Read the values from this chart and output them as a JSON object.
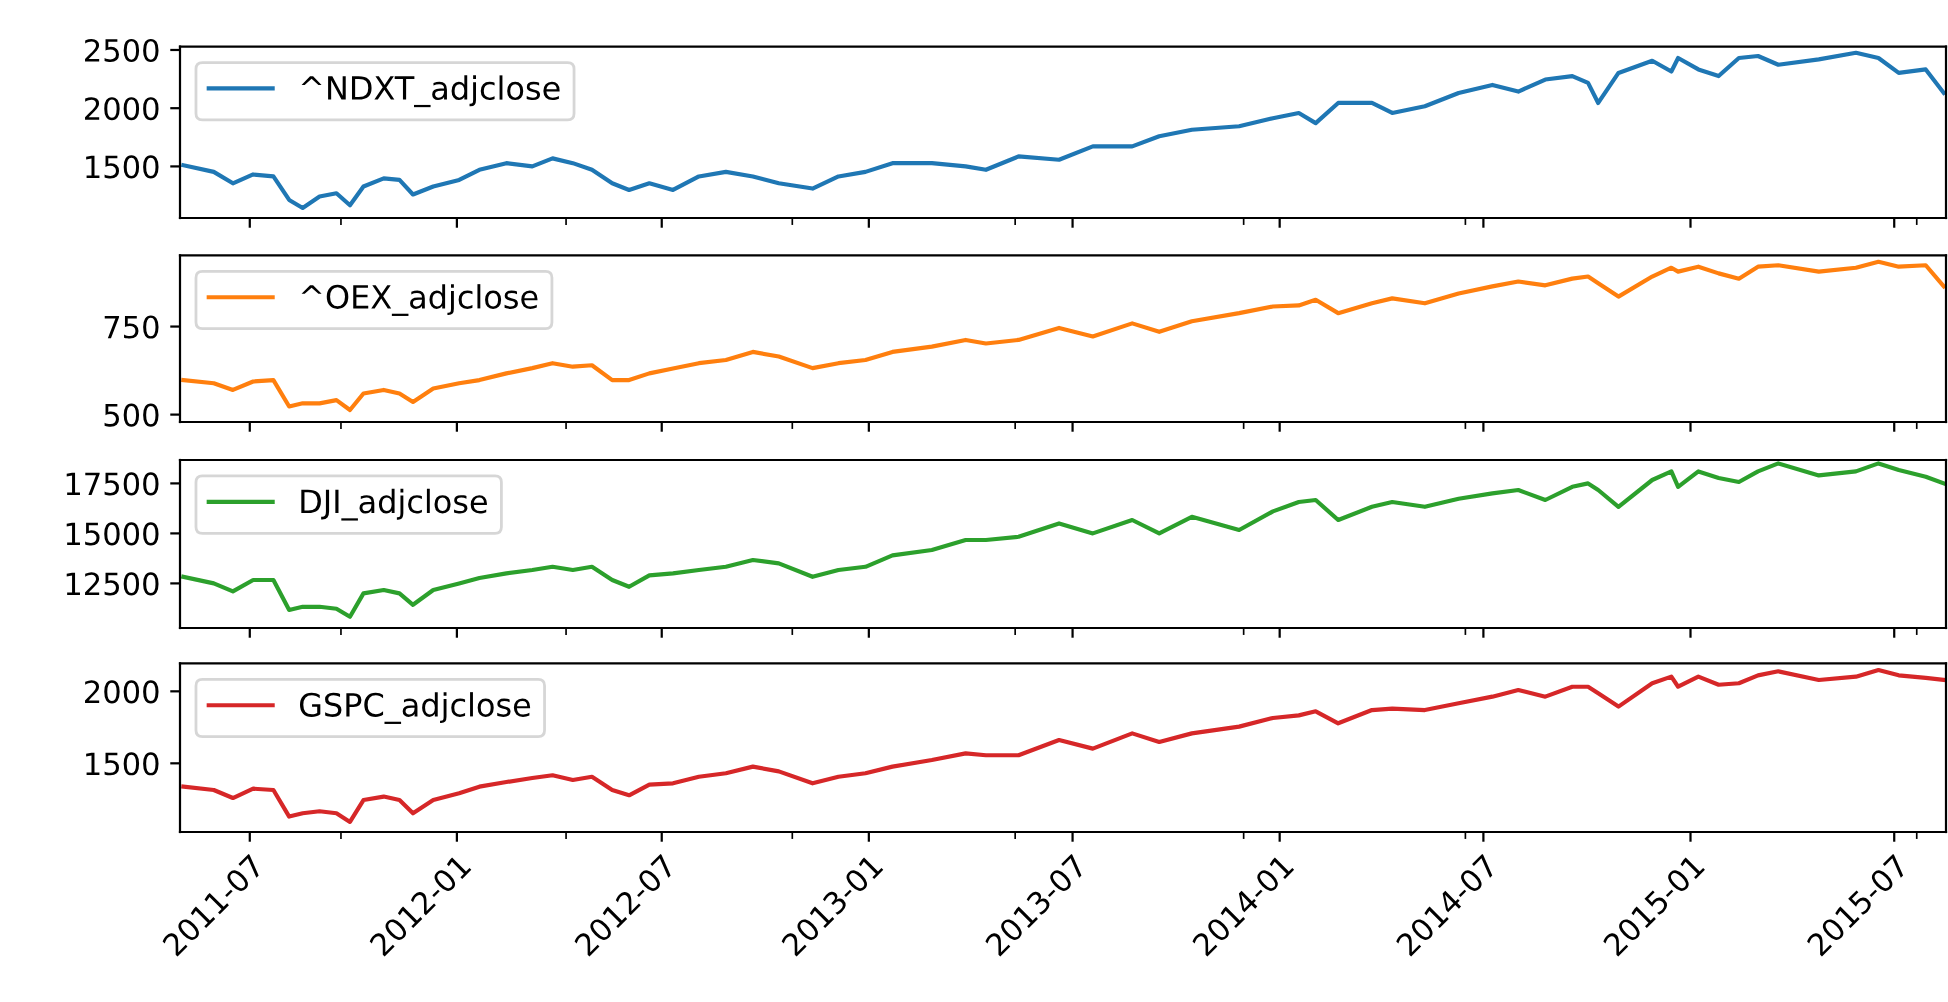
{
  "chart_data": [
    {
      "type": "line",
      "x": [
        "2011-05-03",
        "2011-05-30",
        "2011-06-16",
        "2011-07-04",
        "2011-07-22",
        "2011-08-05",
        "2011-08-17",
        "2011-09-01",
        "2011-09-16",
        "2011-09-28",
        "2011-10-10",
        "2011-10-28",
        "2011-11-11",
        "2011-11-23",
        "2011-12-11",
        "2012-01-03",
        "2012-01-21",
        "2012-02-14",
        "2012-03-08",
        "2012-03-26",
        "2012-04-13",
        "2012-04-30",
        "2012-05-18",
        "2012-06-02",
        "2012-06-20",
        "2012-07-11",
        "2012-08-03",
        "2012-08-27",
        "2012-09-20",
        "2012-10-13",
        "2012-11-12",
        "2012-12-05",
        "2012-12-29",
        "2013-01-22",
        "2013-02-26",
        "2013-03-28",
        "2013-04-15",
        "2013-05-14",
        "2013-06-19",
        "2013-07-19",
        "2013-08-23",
        "2013-09-16",
        "2013-10-15",
        "2013-11-26",
        "2013-12-26",
        "2014-01-18",
        "2014-02-02",
        "2014-02-22",
        "2014-03-24",
        "2014-04-11",
        "2014-05-10",
        "2014-06-09",
        "2014-07-09",
        "2014-08-01",
        "2014-08-25",
        "2014-09-18",
        "2014-10-02",
        "2014-10-11",
        "2014-10-29",
        "2014-11-28",
        "2014-12-15",
        "2014-12-21",
        "2015-01-08",
        "2015-01-26",
        "2015-02-13",
        "2015-03-02",
        "2015-03-20",
        "2015-04-25",
        "2015-05-28",
        "2015-06-17",
        "2015-07-05",
        "2015-07-29",
        "2015-08-14"
      ],
      "series": [
        {
          "name": "^NDXT_adjclose",
          "color": "#1f77b4",
          "values": [
            1510,
            1453,
            1355,
            1431,
            1414,
            1212,
            1143,
            1241,
            1269,
            1166,
            1328,
            1397,
            1384,
            1259,
            1328,
            1384,
            1471,
            1528,
            1500,
            1569,
            1528,
            1471,
            1355,
            1298,
            1355,
            1298,
            1414,
            1453,
            1414,
            1355,
            1310,
            1414,
            1453,
            1528,
            1528,
            1500,
            1471,
            1586,
            1557,
            1672,
            1672,
            1759,
            1815,
            1845,
            1914,
            1959,
            1872,
            2045,
            2045,
            1959,
            2017,
            2131,
            2200,
            2143,
            2246,
            2276,
            2217,
            2045,
            2303,
            2407,
            2315,
            2431,
            2333,
            2276,
            2431,
            2448,
            2373,
            2419,
            2476,
            2431,
            2303,
            2333,
            2131
          ]
        }
      ],
      "xlim": [
        "2011-04-30",
        "2015-08-16"
      ],
      "xticks": [
        "2011-07",
        {
          "value": "2011-09-20",
          "label": null
        },
        "2012-01",
        {
          "value": "2012-04-07",
          "label": null
        },
        "2012-07",
        {
          "value": "2012-10-25",
          "label": null
        },
        "2013-01",
        {
          "value": "2013-05-11",
          "label": null
        },
        "2013-07",
        {
          "value": "2013-11-30",
          "label": null
        },
        "2014-01",
        {
          "value": "2014-06-15",
          "label": null
        },
        "2014-07",
        "2015-01",
        "2015-07",
        {
          "value": "2015-07-21",
          "label": null
        }
      ],
      "ylim": [
        1057,
        2529
      ],
      "yticks": [
        1500,
        2000,
        2500
      ],
      "tick_labels": "y",
      "legend": "top left",
      "grid": false
    },
    {
      "type": "line",
      "x": [
        "2011-05-03",
        "2011-05-30",
        "2011-06-16",
        "2011-07-04",
        "2011-07-22",
        "2011-08-05",
        "2011-08-17",
        "2011-09-01",
        "2011-09-16",
        "2011-09-28",
        "2011-10-10",
        "2011-10-28",
        "2011-11-11",
        "2011-11-23",
        "2011-12-11",
        "2012-01-03",
        "2012-01-21",
        "2012-02-14",
        "2012-03-08",
        "2012-03-26",
        "2012-04-13",
        "2012-04-30",
        "2012-05-18",
        "2012-06-02",
        "2012-06-20",
        "2012-07-11",
        "2012-08-03",
        "2012-08-27",
        "2012-09-20",
        "2012-10-13",
        "2012-11-12",
        "2012-12-05",
        "2012-12-29",
        "2013-01-22",
        "2013-02-26",
        "2013-03-28",
        "2013-04-15",
        "2013-05-14",
        "2013-06-19",
        "2013-07-19",
        "2013-08-23",
        "2013-09-16",
        "2013-10-15",
        "2013-11-26",
        "2013-12-26",
        "2014-01-18",
        "2014-02-02",
        "2014-02-22",
        "2014-03-24",
        "2014-04-11",
        "2014-05-10",
        "2014-06-09",
        "2014-07-09",
        "2014-08-01",
        "2014-08-25",
        "2014-09-18",
        "2014-10-02",
        "2014-10-11",
        "2014-10-29",
        "2014-11-28",
        "2014-12-15",
        "2014-12-21",
        "2015-01-08",
        "2015-01-26",
        "2015-02-13",
        "2015-03-02",
        "2015-03-20",
        "2015-04-25",
        "2015-05-28",
        "2015-06-17",
        "2015-07-05",
        "2015-07-29",
        "2015-08-14"
      ],
      "series": [
        {
          "name": "^OEX_adjclose",
          "color": "#ff7f0e",
          "values": [
            598,
            589,
            570,
            594,
            598,
            523,
            532,
            532,
            541,
            513,
            560,
            570,
            560,
            536,
            574,
            589,
            598,
            617,
            632,
            646,
            636,
            640,
            598,
            598,
            617,
            631,
            646,
            655,
            678,
            665,
            632,
            646,
            655,
            678,
            693,
            712,
            702,
            712,
            746,
            722,
            759,
            735,
            765,
            788,
            807,
            810,
            826,
            788,
            816,
            830,
            816,
            844,
            864,
            878,
            867,
            886,
            892,
            873,
            835,
            892,
            917,
            906,
            920,
            901,
            886,
            920,
            924,
            906,
            917,
            934,
            920,
            924,
            864
          ]
        }
      ],
      "xlim": [
        "2011-04-30",
        "2015-08-16"
      ],
      "xticks": [
        "2011-07",
        {
          "value": "2011-09-20",
          "label": null
        },
        "2012-01",
        {
          "value": "2012-04-07",
          "label": null
        },
        "2012-07",
        {
          "value": "2012-10-25",
          "label": null
        },
        "2013-01",
        {
          "value": "2013-05-11",
          "label": null
        },
        "2013-07",
        {
          "value": "2013-11-30",
          "label": null
        },
        "2014-01",
        {
          "value": "2014-06-15",
          "label": null
        },
        "2014-07",
        "2015-01",
        "2015-07",
        {
          "value": "2015-07-21",
          "label": null
        }
      ],
      "ylim": [
        479,
        952
      ],
      "yticks": [
        500,
        750
      ],
      "tick_labels": "y",
      "legend": "top left",
      "grid": false
    },
    {
      "type": "line",
      "x": [
        "2011-05-03",
        "2011-05-30",
        "2011-06-16",
        "2011-07-04",
        "2011-07-22",
        "2011-08-05",
        "2011-08-17",
        "2011-09-01",
        "2011-09-16",
        "2011-09-28",
        "2011-10-10",
        "2011-10-28",
        "2011-11-11",
        "2011-11-23",
        "2011-12-11",
        "2012-01-03",
        "2012-01-21",
        "2012-02-14",
        "2012-03-08",
        "2012-03-26",
        "2012-04-13",
        "2012-04-30",
        "2012-05-18",
        "2012-06-02",
        "2012-06-20",
        "2012-07-11",
        "2012-08-03",
        "2012-08-27",
        "2012-09-20",
        "2012-10-13",
        "2012-11-12",
        "2012-12-05",
        "2012-12-29",
        "2013-01-22",
        "2013-02-26",
        "2013-03-28",
        "2013-04-15",
        "2013-05-14",
        "2013-06-19",
        "2013-07-19",
        "2013-08-23",
        "2013-09-16",
        "2013-10-15",
        "2013-11-26",
        "2013-12-26",
        "2014-01-18",
        "2014-02-02",
        "2014-02-22",
        "2014-03-24",
        "2014-04-11",
        "2014-05-10",
        "2014-06-09",
        "2014-07-09",
        "2014-08-01",
        "2014-08-25",
        "2014-09-18",
        "2014-10-02",
        "2014-10-11",
        "2014-10-29",
        "2014-11-28",
        "2014-12-15",
        "2014-12-21",
        "2015-01-08",
        "2015-01-26",
        "2015-02-13",
        "2015-03-02",
        "2015-03-20",
        "2015-04-25",
        "2015-05-28",
        "2015-06-17",
        "2015-07-05",
        "2015-07-29",
        "2015-08-14"
      ],
      "series": [
        {
          "name": "DJI_adjclose",
          "color": "#2ca02c",
          "values": [
            12830,
            12500,
            12100,
            12670,
            12670,
            11170,
            11330,
            11330,
            11230,
            10830,
            12000,
            12170,
            12000,
            11430,
            12170,
            12500,
            12770,
            13000,
            13170,
            13330,
            13170,
            13330,
            12670,
            12330,
            12900,
            13000,
            13170,
            13330,
            13670,
            13500,
            12830,
            13170,
            13330,
            13900,
            14170,
            14670,
            14670,
            14830,
            15500,
            15000,
            15670,
            15000,
            15830,
            15170,
            16100,
            16570,
            16670,
            15670,
            16330,
            16570,
            16330,
            16730,
            17000,
            17170,
            16670,
            17330,
            17500,
            17170,
            16330,
            17670,
            18100,
            17330,
            18100,
            17770,
            17570,
            18100,
            18500,
            17900,
            18100,
            18500,
            18170,
            17830,
            17500
          ]
        }
      ],
      "xlim": [
        "2011-04-30",
        "2015-08-16"
      ],
      "xticks": [
        "2011-07",
        {
          "value": "2011-09-20",
          "label": null
        },
        "2012-01",
        {
          "value": "2012-04-07",
          "label": null
        },
        "2012-07",
        {
          "value": "2012-10-25",
          "label": null
        },
        "2013-01",
        {
          "value": "2013-05-11",
          "label": null
        },
        "2013-07",
        {
          "value": "2013-11-30",
          "label": null
        },
        "2014-01",
        {
          "value": "2014-06-15",
          "label": null
        },
        "2014-07",
        "2015-01",
        "2015-07",
        {
          "value": "2015-07-21",
          "label": null
        }
      ],
      "ylim": [
        10270,
        18670
      ],
      "yticks": [
        12500,
        15000,
        17500
      ],
      "tick_labels": "y",
      "legend": "top left",
      "grid": false
    },
    {
      "type": "line",
      "x": [
        "2011-05-03",
        "2011-05-30",
        "2011-06-16",
        "2011-07-04",
        "2011-07-22",
        "2011-08-05",
        "2011-08-17",
        "2011-09-01",
        "2011-09-16",
        "2011-09-28",
        "2011-10-10",
        "2011-10-28",
        "2011-11-11",
        "2011-11-23",
        "2011-12-11",
        "2012-01-03",
        "2012-01-21",
        "2012-02-14",
        "2012-03-08",
        "2012-03-26",
        "2012-04-13",
        "2012-04-30",
        "2012-05-18",
        "2012-06-02",
        "2012-06-20",
        "2012-07-11",
        "2012-08-03",
        "2012-08-27",
        "2012-09-20",
        "2012-10-13",
        "2012-11-12",
        "2012-12-05",
        "2012-12-29",
        "2013-01-22",
        "2013-02-26",
        "2013-03-28",
        "2013-04-15",
        "2013-05-14",
        "2013-06-19",
        "2013-07-19",
        "2013-08-23",
        "2013-09-16",
        "2013-10-15",
        "2013-11-26",
        "2013-12-26",
        "2014-01-18",
        "2014-02-02",
        "2014-02-22",
        "2014-03-24",
        "2014-04-11",
        "2014-05-10",
        "2014-06-09",
        "2014-07-09",
        "2014-08-01",
        "2014-08-25",
        "2014-09-18",
        "2014-10-02",
        "2014-10-11",
        "2014-10-29",
        "2014-11-28",
        "2014-12-15",
        "2014-12-21",
        "2015-01-08",
        "2015-01-26",
        "2015-02-13",
        "2015-03-02",
        "2015-03-20",
        "2015-04-25",
        "2015-05-28",
        "2015-06-17",
        "2015-07-05",
        "2015-07-29",
        "2015-08-14"
      ],
      "series": [
        {
          "name": "GSPC_adjclose",
          "color": "#d62728",
          "values": [
            1338,
            1315,
            1259,
            1324,
            1315,
            1130,
            1153,
            1167,
            1153,
            1093,
            1245,
            1269,
            1245,
            1153,
            1245,
            1292,
            1338,
            1370,
            1398,
            1417,
            1384,
            1407,
            1315,
            1278,
            1352,
            1361,
            1407,
            1431,
            1477,
            1444,
            1361,
            1407,
            1431,
            1477,
            1523,
            1569,
            1556,
            1556,
            1662,
            1602,
            1708,
            1648,
            1708,
            1755,
            1815,
            1833,
            1861,
            1778,
            1870,
            1880,
            1870,
            1917,
            1963,
            2009,
            1963,
            2032,
            2032,
            1986,
            1894,
            2056,
            2102,
            2032,
            2102,
            2046,
            2056,
            2111,
            2139,
            2079,
            2102,
            2148,
            2111,
            2093,
            2079
          ]
        }
      ],
      "xlim": [
        "2011-04-30",
        "2015-08-16"
      ],
      "xticks": [
        "2011-07",
        {
          "value": "2011-09-20",
          "label": null
        },
        "2012-01",
        {
          "value": "2012-04-07",
          "label": null
        },
        "2012-07",
        {
          "value": "2012-10-25",
          "label": null
        },
        "2013-01",
        {
          "value": "2013-05-11",
          "label": null
        },
        "2013-07",
        {
          "value": "2013-11-30",
          "label": null
        },
        "2014-01",
        {
          "value": "2014-06-15",
          "label": null
        },
        "2014-07",
        "2015-01",
        "2015-07",
        {
          "value": "2015-07-21",
          "label": null
        }
      ],
      "ylim": [
        1023,
        2194
      ],
      "yticks": [
        1500,
        2000
      ],
      "legend": "top left",
      "grid": false
    }
  ]
}
